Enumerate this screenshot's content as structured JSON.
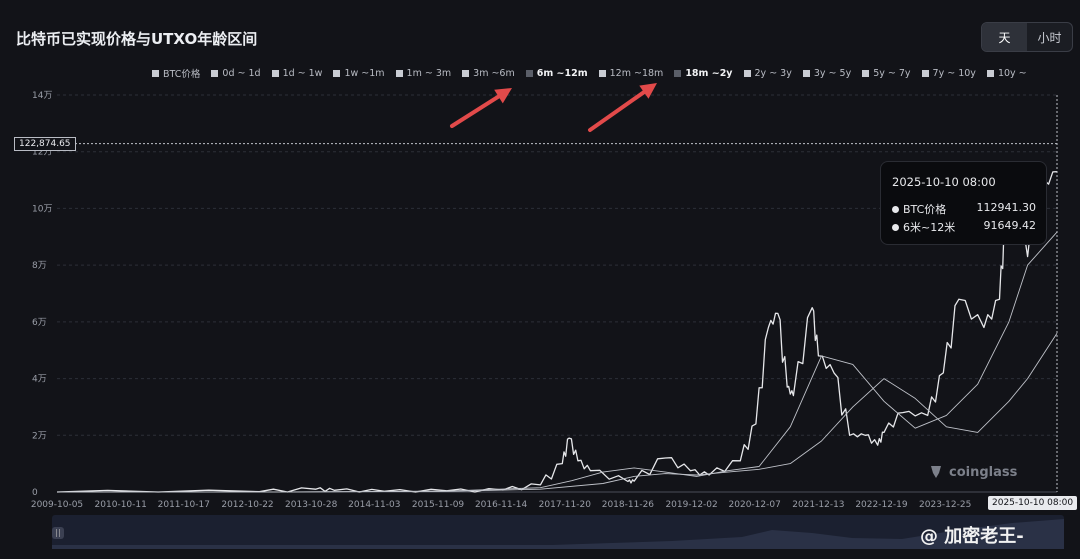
{
  "title": "比特币已实现价格与UTXO年龄区间",
  "toggle": {
    "day": "天",
    "hour": "小时"
  },
  "legend": [
    {
      "label": "BTC价格",
      "state": "on"
    },
    {
      "label": "0d ~ 1d",
      "state": "on"
    },
    {
      "label": "1d ~ 1w",
      "state": "on"
    },
    {
      "label": "1w ~1m",
      "state": "on"
    },
    {
      "label": "1m ~ 3m",
      "state": "on"
    },
    {
      "label": "3m ~6m",
      "state": "on"
    },
    {
      "label": "6m ~12m",
      "state": "highlight"
    },
    {
      "label": "12m ~18m",
      "state": "on"
    },
    {
      "label": "18m ~2y",
      "state": "highlight"
    },
    {
      "label": "2y ~ 3y",
      "state": "on"
    },
    {
      "label": "3y ~ 5y",
      "state": "on"
    },
    {
      "label": "5y ~ 7y",
      "state": "on"
    },
    {
      "label": "7y ~ 10y",
      "state": "on"
    },
    {
      "label": "10y ~",
      "state": "on"
    }
  ],
  "tooltip": {
    "date": "2025-10-10 08:00",
    "rows": [
      {
        "label": "BTC价格",
        "value": "112941.30"
      },
      {
        "label": "6米~12米",
        "value": "91649.42"
      }
    ]
  },
  "crosshair": {
    "price_label": "122,874.65",
    "date_label": "2025-10-10 08:00"
  },
  "logo": "coinglass",
  "watermark": "@ 加密老王-",
  "colors": {
    "background": "#121318",
    "line": "#e6e7ea",
    "arrow": "#e24a4a"
  },
  "chart_data": {
    "type": "line",
    "title": "比特币已实现价格与UTXO年龄区间",
    "ylim": [
      0,
      140000
    ],
    "y_ticks": [
      {
        "label": "0",
        "value": 0
      },
      {
        "label": "2万",
        "value": 20000
      },
      {
        "label": "4万",
        "value": 40000
      },
      {
        "label": "6万",
        "value": 60000
      },
      {
        "label": "8万",
        "value": 80000
      },
      {
        "label": "10万",
        "value": 100000
      },
      {
        "label": "12万",
        "value": 120000
      },
      {
        "label": "14万",
        "value": 140000
      }
    ],
    "x_ticks": [
      "2009-10-05",
      "2010-10-11",
      "2011-10-17",
      "2012-10-22",
      "2013-10-28",
      "2014-11-03",
      "2015-11-09",
      "2016-11-14",
      "2017-11-20",
      "2018-11-26",
      "2019-12-02",
      "2020-12-07",
      "2021-12-13",
      "2022-12-19",
      "2023-12-25",
      "2025-10-10"
    ],
    "x_tick_years": [
      2009.76,
      2010.78,
      2011.79,
      2012.81,
      2013.83,
      2014.84,
      2015.86,
      2016.87,
      2017.89,
      2018.9,
      2019.92,
      2020.93,
      2021.95,
      2022.96,
      2023.98,
      2025.77
    ],
    "xlim": [
      2009.76,
      2025.77
    ],
    "series": [
      {
        "name": "BTC价格",
        "x": [
          2009.76,
          2013.0,
          2013.9,
          2014.2,
          2015.0,
          2016.0,
          2016.9,
          2017.5,
          2017.85,
          2017.96,
          2018.1,
          2018.3,
          2018.9,
          2019.0,
          2019.5,
          2019.9,
          2020.2,
          2020.7,
          2020.95,
          2021.15,
          2021.3,
          2021.45,
          2021.55,
          2021.85,
          2021.95,
          2022.2,
          2022.45,
          2022.7,
          2022.9,
          2023.0,
          2023.3,
          2023.7,
          2023.95,
          2024.2,
          2024.6,
          2024.85,
          2024.95,
          2025.1,
          2025.3,
          2025.5,
          2025.77
        ],
        "y": [
          0,
          100,
          1000,
          600,
          250,
          430,
          700,
          2500,
          10000,
          19000,
          11000,
          7500,
          3700,
          3800,
          12000,
          7500,
          6000,
          11000,
          24000,
          58000,
          63000,
          37000,
          34000,
          65000,
          48000,
          42000,
          20000,
          20000,
          16500,
          21000,
          28000,
          27000,
          42000,
          68000,
          58000,
          68000,
          98000,
          100000,
          83000,
          107000,
          112941
        ]
      },
      {
        "name": "6米~12米",
        "x": [
          2009.76,
          2013.5,
          2016.0,
          2017.5,
          2018.0,
          2018.5,
          2019.0,
          2019.5,
          2020.0,
          2020.5,
          2021.0,
          2021.5,
          2022.0,
          2022.5,
          2023.0,
          2023.5,
          2024.0,
          2024.5,
          2025.0,
          2025.3,
          2025.77
        ],
        "y": [
          0,
          50,
          300,
          1500,
          4000,
          7000,
          8500,
          7000,
          5500,
          7500,
          9000,
          23000,
          48000,
          45000,
          32000,
          22500,
          27000,
          38000,
          60000,
          80000,
          91649
        ]
      },
      {
        "name": "",
        "x": [
          2009.76,
          2013.5,
          2016.0,
          2017.5,
          2018.5,
          2019.0,
          2019.5,
          2020.0,
          2020.5,
          2021.0,
          2021.5,
          2022.0,
          2022.5,
          2023.0,
          2023.5,
          2024.0,
          2024.5,
          2025.0,
          2025.3,
          2025.77
        ],
        "y": [
          0,
          50,
          200,
          1000,
          3000,
          5500,
          6500,
          6000,
          7000,
          8000,
          10000,
          18000,
          30000,
          40000,
          33000,
          23000,
          21000,
          32000,
          40000,
          56000
        ]
      }
    ]
  }
}
